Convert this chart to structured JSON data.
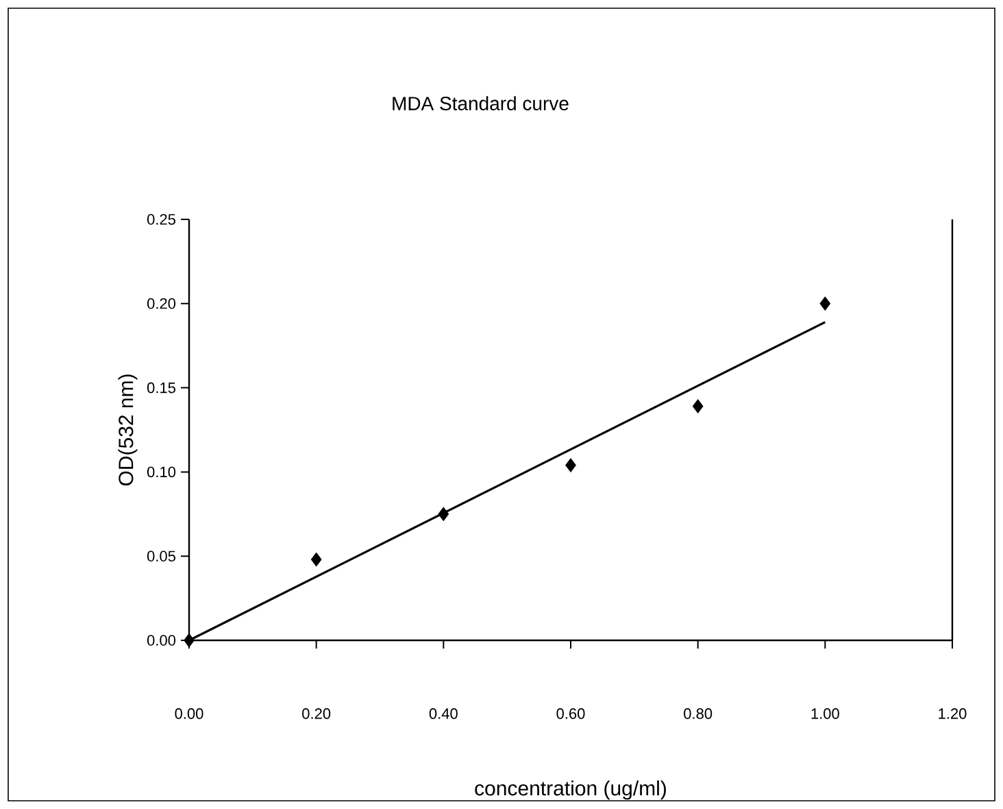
{
  "chart_data": {
    "type": "scatter",
    "title": "MDA Standard curve",
    "xlabel": "concentration (ug/ml)",
    "ylabel": "OD(532 nm)",
    "x": [
      0,
      0.2,
      0.4,
      0.6,
      0.8,
      1.0
    ],
    "series": [
      {
        "color": "#000000",
        "marker": "diamond",
        "values": [
          0,
          0.048,
          0.075,
          0.104,
          0.139,
          0.2
        ]
      },
      {
        "type": "line",
        "color": "#000000",
        "marker": "none",
        "line_style": "solid",
        "x": [
          0,
          1.0
        ],
        "values": [
          0,
          0.189
        ]
      }
    ],
    "xlim": [
      0,
      1.2
    ],
    "ylim": [
      0,
      0.25
    ],
    "xticks": [
      {
        "value": 0,
        "label": "0.00"
      },
      {
        "value": 0.2,
        "label": "0.20"
      },
      {
        "value": 0.4,
        "label": "0.40"
      },
      {
        "value": 0.6,
        "label": "0.60"
      },
      {
        "value": 0.8,
        "label": "0.80"
      },
      {
        "value": 1.0,
        "label": "1.00"
      },
      {
        "value": 1.2,
        "label": "1.20"
      }
    ],
    "yticks": [
      {
        "value": 0,
        "label": "0.00"
      },
      {
        "value": 0.05,
        "label": "0.05"
      },
      {
        "value": 0.1,
        "label": "0.10"
      },
      {
        "value": 0.15,
        "label": "0.15"
      },
      {
        "value": 0.2,
        "label": "0.20"
      },
      {
        "value": 0.25,
        "label": "0.25"
      }
    ],
    "grid": false
  }
}
